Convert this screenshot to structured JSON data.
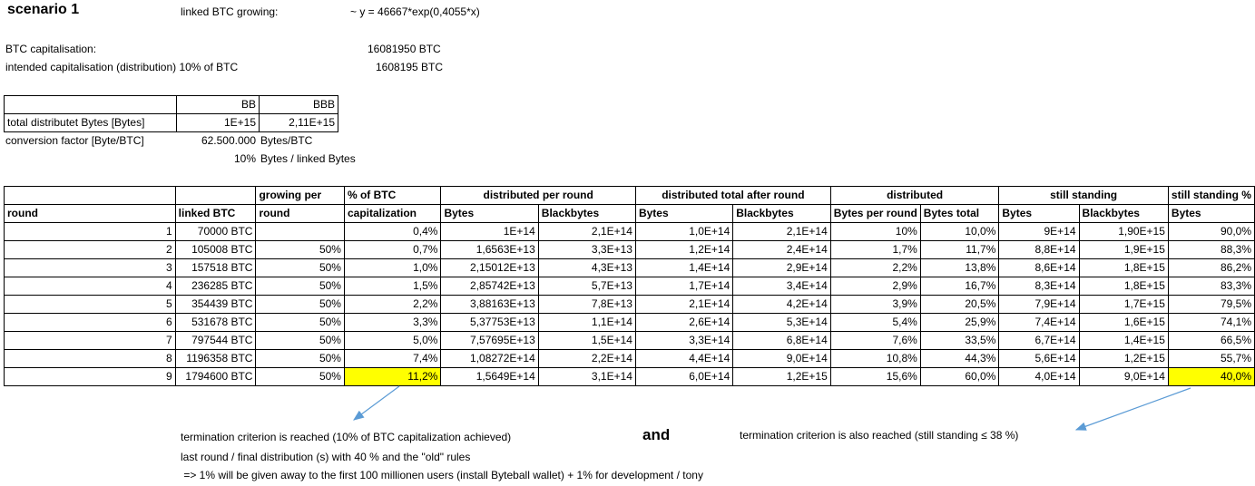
{
  "header": {
    "title": "scenario 1",
    "growth_label": "linked BTC growing:",
    "growth_formula": "~ y = 46667*exp(0,4055*x)",
    "btc_cap_label": "BTC capitalisation:",
    "btc_cap_value": "16081950 BTC",
    "intended_label": "intended capitalisation (distribution) 10% of BTC",
    "intended_value": "1608195 BTC"
  },
  "small_table": {
    "col_bb": "BB",
    "col_bbb": "BBB",
    "row_label": "total distributet Bytes [Bytes]",
    "bb_value": "1E+15",
    "bbb_value": "2,11E+15"
  },
  "conversion": {
    "label": "conversion factor [Byte/BTC]",
    "value": "62.500.000",
    "unit": "Bytes/BTC",
    "pct": "10%",
    "pct_unit": "Bytes / linked Bytes"
  },
  "main_table": {
    "group_headers": {
      "growing": "growing per",
      "pct_btc": "% of BTC",
      "distributed_per_round": "distributed per round",
      "distributed_total": "distributed total after round",
      "distributed": "distributed",
      "still_standing": "still standing",
      "still_standing_pct": "still standing %"
    },
    "sub_headers": {
      "round": "round",
      "linked": "linked BTC",
      "growing": "round",
      "pct_btc": "capitalization",
      "dpr_bytes": "Bytes",
      "dpr_black": "Blackbytes",
      "dt_bytes": "Bytes",
      "dt_black": "Blackbytes",
      "d_per_round": "Bytes per round",
      "d_total": "Bytes total",
      "ss_bytes": "Bytes",
      "ss_black": "Blackbytes",
      "ss_pct": "Bytes"
    },
    "rows": [
      [
        "1",
        "70000 BTC",
        "",
        "0,4%",
        "1E+14",
        "2,1E+14",
        "1,0E+14",
        "2,1E+14",
        "10%",
        "10,0%",
        "9E+14",
        "1,90E+15",
        "90,0%"
      ],
      [
        "2",
        "105008 BTC",
        "50%",
        "0,7%",
        "1,6563E+13",
        "3,3E+13",
        "1,2E+14",
        "2,4E+14",
        "1,7%",
        "11,7%",
        "8,8E+14",
        "1,9E+15",
        "88,3%"
      ],
      [
        "3",
        "157518 BTC",
        "50%",
        "1,0%",
        "2,15012E+13",
        "4,3E+13",
        "1,4E+14",
        "2,9E+14",
        "2,2%",
        "13,8%",
        "8,6E+14",
        "1,8E+15",
        "86,2%"
      ],
      [
        "4",
        "236285 BTC",
        "50%",
        "1,5%",
        "2,85742E+13",
        "5,7E+13",
        "1,7E+14",
        "3,4E+14",
        "2,9%",
        "16,7%",
        "8,3E+14",
        "1,8E+15",
        "83,3%"
      ],
      [
        "5",
        "354439 BTC",
        "50%",
        "2,2%",
        "3,88163E+13",
        "7,8E+13",
        "2,1E+14",
        "4,2E+14",
        "3,9%",
        "20,5%",
        "7,9E+14",
        "1,7E+15",
        "79,5%"
      ],
      [
        "6",
        "531678 BTC",
        "50%",
        "3,3%",
        "5,37753E+13",
        "1,1E+14",
        "2,6E+14",
        "5,3E+14",
        "5,4%",
        "25,9%",
        "7,4E+14",
        "1,6E+15",
        "74,1%"
      ],
      [
        "7",
        "797544 BTC",
        "50%",
        "5,0%",
        "7,57695E+13",
        "1,5E+14",
        "3,3E+14",
        "6,8E+14",
        "7,6%",
        "33,5%",
        "6,7E+14",
        "1,4E+15",
        "66,5%"
      ],
      [
        "8",
        "1196358 BTC",
        "50%",
        "7,4%",
        "1,08272E+14",
        "2,2E+14",
        "4,4E+14",
        "9,0E+14",
        "10,8%",
        "44,3%",
        "5,6E+14",
        "1,2E+15",
        "55,7%"
      ],
      [
        "9",
        "1794600 BTC",
        "50%",
        "11,2%",
        "1,5649E+14",
        "3,1E+14",
        "6,0E+14",
        "1,2E+15",
        "15,6%",
        "60,0%",
        "4,0E+14",
        "9,0E+14",
        "40,0%"
      ]
    ],
    "highlight_color": "#ffff00"
  },
  "notes": {
    "line1": "termination criterion is reached (10% of BTC capitalization achieved)",
    "and": "and",
    "line1_right": "termination criterion is also  reached (still standing ≤ 38 %)",
    "line2": "last round / final distribution (s) with 40 % and the \"old\" rules",
    "line3": " => 1% will be given away to the first 100 millionen users (install Byteball wallet) + 1% for development / tony"
  },
  "colors": {
    "arrow": "#5b9bd5"
  }
}
